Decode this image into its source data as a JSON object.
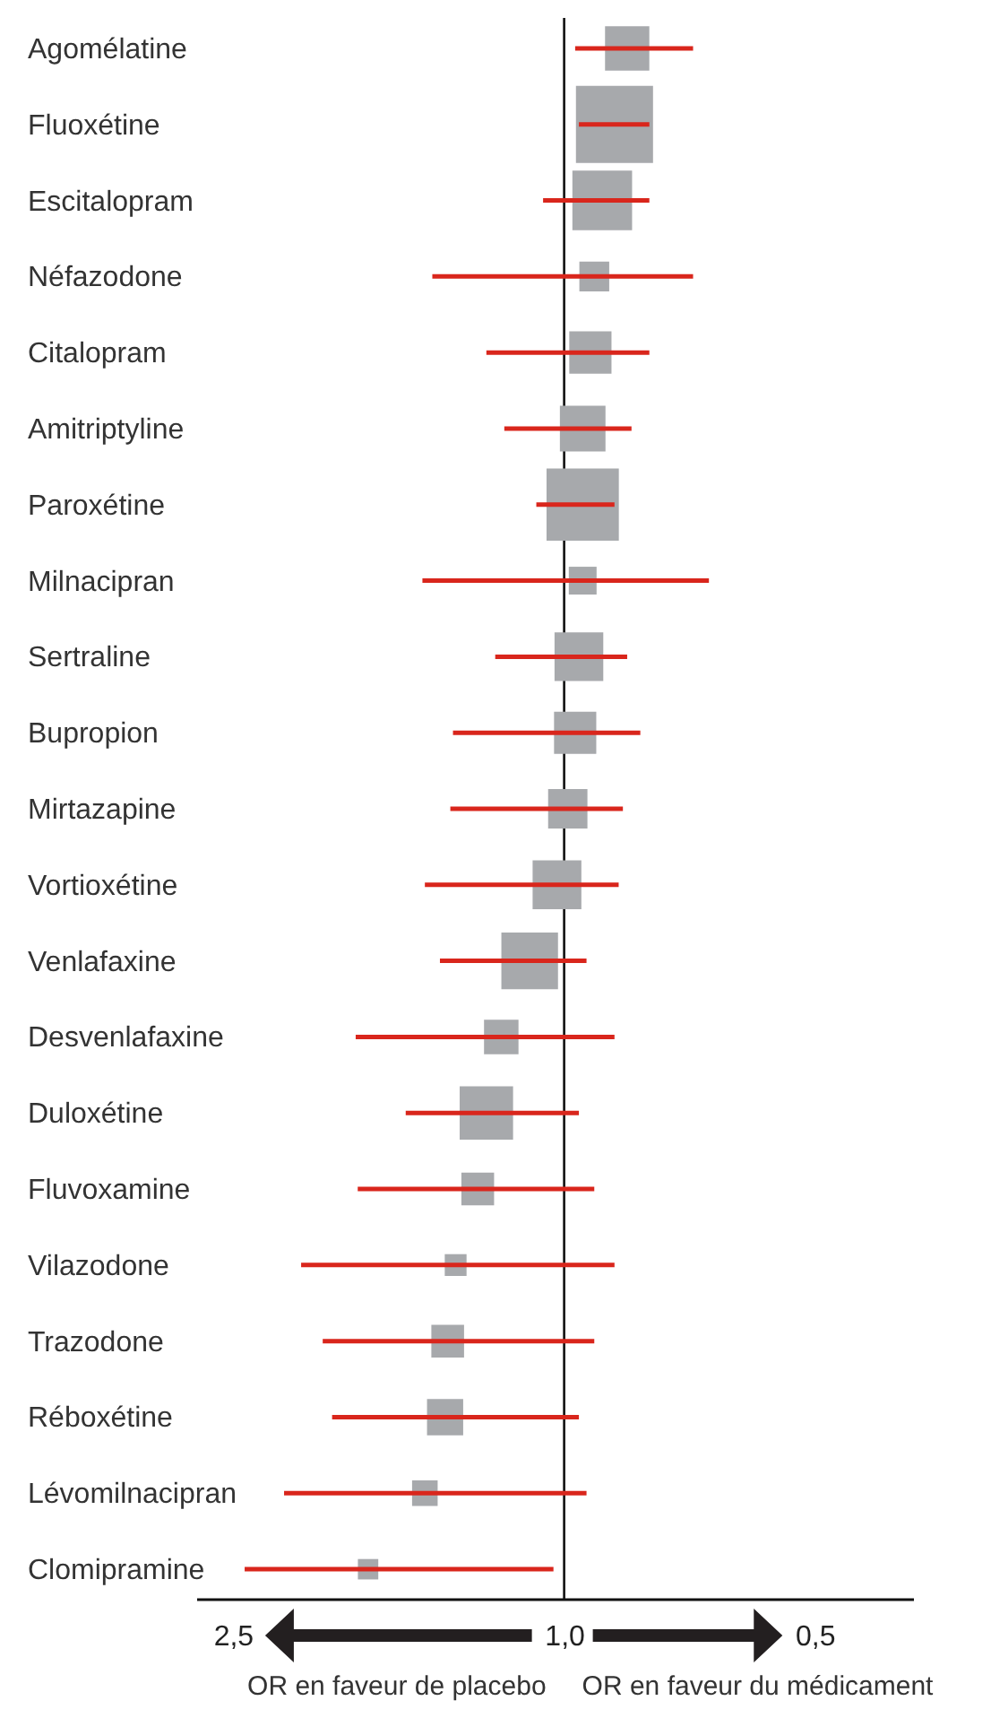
{
  "chart_data": {
    "type": "bubble",
    "orientation": "horizontal",
    "marker": "square",
    "categories": [
      "Agomélatine",
      "Fluoxétine",
      "Escitalopram",
      "Néfazodone",
      "Citalopram",
      "Amitriptyline",
      "Paroxétine",
      "Milnacipran",
      "Sertraline",
      "Bupropion",
      "Mirtazapine",
      "Vortioxétine",
      "Venlafaxine",
      "Desvenlafaxine",
      "Duloxétine",
      "Fluvoxamine",
      "Vilazodone",
      "Trazodone",
      "Réboxétine",
      "Lévomilnacipran",
      "Clomipramine"
    ],
    "series": [
      {
        "color": "#a7a9ac",
        "values": [
          0.84,
          0.87,
          0.9,
          0.92,
          0.93,
          0.95,
          0.95,
          0.95,
          0.96,
          0.97,
          0.99,
          1.02,
          1.1,
          1.19,
          1.24,
          1.27,
          1.35,
          1.38,
          1.39,
          1.47,
          1.72
        ],
        "sizes": [
          0.33,
          1.0,
          0.6,
          0.15,
          0.3,
          0.35,
          0.88,
          0.13,
          0.4,
          0.3,
          0.26,
          0.4,
          0.54,
          0.2,
          0.48,
          0.18,
          0.08,
          0.18,
          0.22,
          0.11,
          0.07
        ],
        "errors": [
          [
            0.7,
            0.97
          ],
          [
            0.79,
            0.96
          ],
          [
            0.79,
            1.06
          ],
          [
            0.7,
            1.44
          ],
          [
            0.79,
            1.24
          ],
          [
            0.83,
            1.18
          ],
          [
            0.87,
            1.08
          ],
          [
            0.67,
            1.48
          ],
          [
            0.84,
            1.21
          ],
          [
            0.81,
            1.36
          ],
          [
            0.85,
            1.37
          ],
          [
            0.86,
            1.47
          ],
          [
            0.94,
            1.41
          ],
          [
            0.87,
            1.78
          ],
          [
            0.96,
            1.55
          ],
          [
            0.92,
            1.77
          ],
          [
            0.87,
            2.07
          ],
          [
            0.92,
            1.95
          ],
          [
            0.96,
            1.9
          ],
          [
            0.94,
            2.17
          ],
          [
            1.03,
            2.42
          ]
        ]
      }
    ],
    "xlim": [
      2.76,
      0.38
    ],
    "log": "x",
    "xticks": [
      {
        "value": 2.5,
        "label": "2,5"
      },
      {
        "value": 1.0,
        "label": "1,0"
      },
      {
        "value": 0.5,
        "label": "0,5"
      }
    ],
    "ref_lines": [
      {
        "axis": "x",
        "value": 1.0
      }
    ],
    "annotations": [
      "OR en faveur de placebo",
      "OR en faveur du médicament"
    ]
  }
}
